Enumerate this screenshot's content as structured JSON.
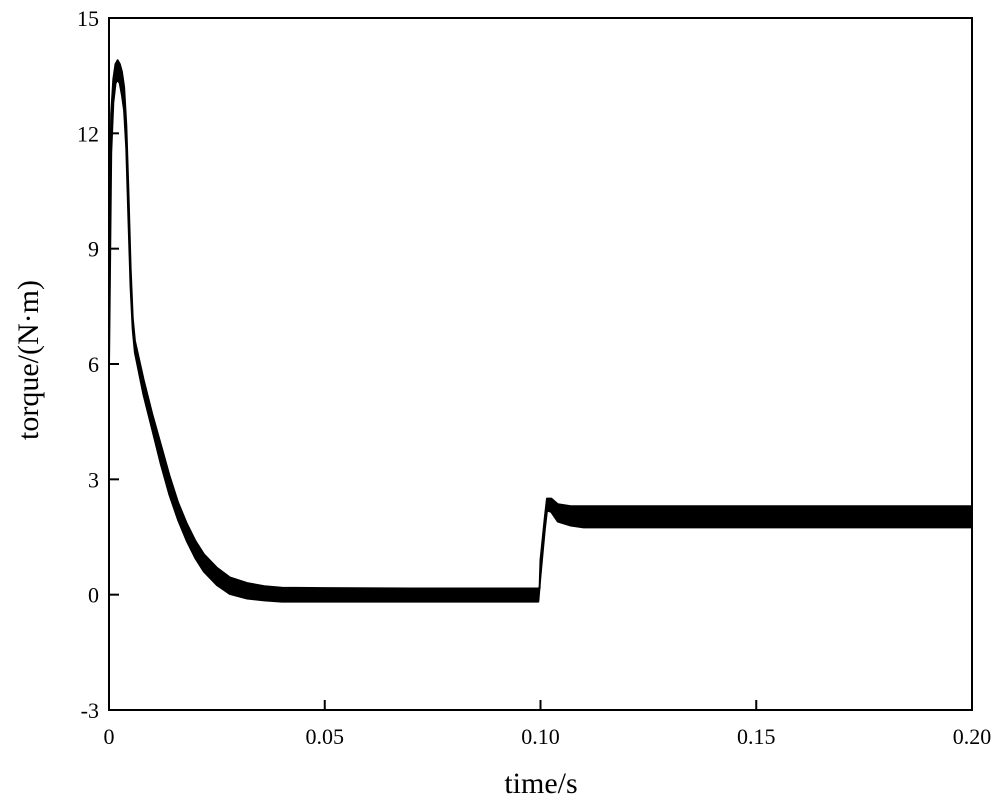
{
  "chart_data": {
    "type": "line",
    "title": "",
    "xlabel": "time/s",
    "ylabel": "torque/(N·m)",
    "xlim": [
      0,
      0.2
    ],
    "ylim": [
      -3,
      15
    ],
    "grid": false,
    "legend": "none",
    "x_ticks": [
      {
        "value": 0,
        "label": "0"
      },
      {
        "value": 0.05,
        "label": "0.05"
      },
      {
        "value": 0.1,
        "label": "0.10"
      },
      {
        "value": 0.15,
        "label": "0.15"
      },
      {
        "value": 0.2,
        "label": "0.20"
      }
    ],
    "y_ticks": [
      {
        "value": -3,
        "label": "-3"
      },
      {
        "value": 0,
        "label": "0"
      },
      {
        "value": 3,
        "label": "3"
      },
      {
        "value": 6,
        "label": "6"
      },
      {
        "value": 9,
        "label": "9"
      },
      {
        "value": 12,
        "label": "12"
      },
      {
        "value": 15,
        "label": "15"
      }
    ],
    "series": [
      {
        "color": "#000000",
        "upper": [
          [
            0,
            8
          ],
          [
            0.0005,
            12.5
          ],
          [
            0.001,
            13.4
          ],
          [
            0.0015,
            13.8
          ],
          [
            0.002,
            13.9
          ],
          [
            0.0025,
            13.8
          ],
          [
            0.003,
            13.6
          ],
          [
            0.0035,
            13.2
          ],
          [
            0.004,
            12.2
          ],
          [
            0.0045,
            10.5
          ],
          [
            0.005,
            8.5
          ],
          [
            0.0055,
            7.2
          ],
          [
            0.006,
            6.6
          ],
          [
            0.008,
            5.6
          ],
          [
            0.01,
            4.7
          ],
          [
            0.012,
            3.9
          ],
          [
            0.014,
            3.1
          ],
          [
            0.016,
            2.4
          ],
          [
            0.018,
            1.85
          ],
          [
            0.02,
            1.4
          ],
          [
            0.022,
            1.05
          ],
          [
            0.025,
            0.7
          ],
          [
            0.028,
            0.45
          ],
          [
            0.032,
            0.3
          ],
          [
            0.036,
            0.22
          ],
          [
            0.04,
            0.18
          ],
          [
            0.05,
            0.17
          ],
          [
            0.07,
            0.16
          ],
          [
            0.0998,
            0.16
          ],
          [
            0.1,
            0.9
          ],
          [
            0.101,
            2.0
          ],
          [
            0.1015,
            2.5
          ],
          [
            0.1025,
            2.5
          ],
          [
            0.104,
            2.35
          ],
          [
            0.107,
            2.3
          ],
          [
            0.11,
            2.3
          ],
          [
            0.13,
            2.3
          ],
          [
            0.2,
            2.3
          ]
        ],
        "lower": [
          [
            0,
            6
          ],
          [
            0.0005,
            11.5
          ],
          [
            0.001,
            12.8
          ],
          [
            0.0015,
            13.3
          ],
          [
            0.002,
            13.4
          ],
          [
            0.0025,
            13.3
          ],
          [
            0.003,
            13.0
          ],
          [
            0.0035,
            12.6
          ],
          [
            0.004,
            11.6
          ],
          [
            0.0045,
            9.8
          ],
          [
            0.005,
            8.0
          ],
          [
            0.0055,
            6.9
          ],
          [
            0.006,
            6.3
          ],
          [
            0.008,
            5.2
          ],
          [
            0.01,
            4.3
          ],
          [
            0.012,
            3.4
          ],
          [
            0.014,
            2.6
          ],
          [
            0.016,
            1.95
          ],
          [
            0.018,
            1.4
          ],
          [
            0.02,
            0.95
          ],
          [
            0.022,
            0.6
          ],
          [
            0.025,
            0.25
          ],
          [
            0.028,
            0.02
          ],
          [
            0.032,
            -0.1
          ],
          [
            0.036,
            -0.15
          ],
          [
            0.04,
            -0.18
          ],
          [
            0.05,
            -0.18
          ],
          [
            0.07,
            -0.18
          ],
          [
            0.0995,
            -0.18
          ],
          [
            0.1,
            0.5
          ],
          [
            0.101,
            1.7
          ],
          [
            0.1015,
            2.2
          ],
          [
            0.1025,
            2.15
          ],
          [
            0.104,
            1.9
          ],
          [
            0.107,
            1.8
          ],
          [
            0.11,
            1.75
          ],
          [
            0.13,
            1.75
          ],
          [
            0.2,
            1.75
          ]
        ]
      }
    ]
  }
}
